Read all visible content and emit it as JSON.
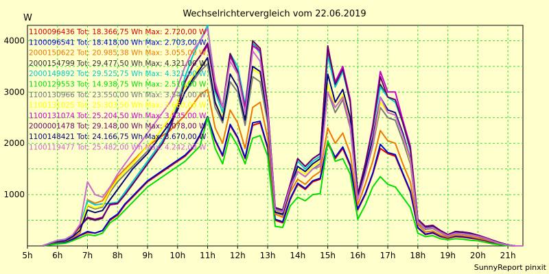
{
  "chart_data": {
    "type": "line",
    "title": "Wechselrichtervergleich vom 22.06.2019",
    "ylabel": "W",
    "footer": "SunnyReport pinxit",
    "grid": true,
    "ylim": [
      0,
      4300
    ],
    "xlim": [
      5,
      21.5
    ],
    "yticks": [
      1000,
      2000,
      3000,
      4000
    ],
    "xticks": [
      "5h",
      "6h",
      "7h",
      "8h",
      "9h",
      "10h",
      "11h",
      "12h",
      "13h",
      "14h",
      "15h",
      "16h",
      "17h",
      "18h",
      "19h",
      "20h",
      "21h"
    ],
    "x": [
      5.5,
      5.75,
      6,
      6.25,
      6.5,
      6.75,
      7,
      7.25,
      7.5,
      7.75,
      8,
      8.25,
      8.5,
      8.75,
      9,
      9.25,
      9.5,
      9.75,
      10,
      10.25,
      10.5,
      10.75,
      11,
      11.25,
      11.5,
      11.75,
      12,
      12.25,
      12.5,
      12.75,
      13,
      13.25,
      13.5,
      13.75,
      14,
      14.25,
      14.5,
      14.75,
      15,
      15.25,
      15.5,
      15.75,
      16,
      16.25,
      16.5,
      16.75,
      17,
      17.25,
      17.5,
      17.75,
      18,
      18.25,
      18.5,
      18.75,
      19,
      19.25,
      19.5,
      19.75,
      20,
      20.25,
      20.5,
      20.75,
      21,
      21.25,
      21.5
    ],
    "series": [
      {
        "name": "1100096436 Tot: 18.366,75 Wh Max: 2.720,00 W",
        "color": "#dd0000",
        "values": [
          0,
          30,
          60,
          70,
          120,
          200,
          260,
          250,
          300,
          500,
          600,
          800,
          950,
          1100,
          1250,
          1350,
          1450,
          1550,
          1650,
          1750,
          1900,
          2150,
          2520,
          2050,
          1750,
          2350,
          2100,
          1700,
          2350,
          2400,
          1900,
          500,
          450,
          900,
          1200,
          1100,
          1250,
          1300,
          2000,
          1700,
          1900,
          1550,
          700,
          1000,
          1400,
          1900,
          1800,
          1750,
          1400,
          1050,
          350,
          220,
          250,
          180,
          150,
          180,
          170,
          150,
          130,
          100,
          60,
          30,
          10,
          0,
          0
        ]
      },
      {
        "name": "1100096541 Tot: 18.418,00 Wh Max: 2.703,00 W",
        "color": "#0000cc",
        "values": [
          0,
          30,
          60,
          70,
          130,
          210,
          280,
          250,
          300,
          520,
          620,
          820,
          970,
          1120,
          1270,
          1370,
          1470,
          1570,
          1670,
          1770,
          1920,
          2170,
          2520,
          2070,
          1770,
          2370,
          2120,
          1720,
          2400,
          2430,
          1920,
          520,
          470,
          920,
          1220,
          1120,
          1270,
          1320,
          2030,
          1730,
          1930,
          1580,
          720,
          1020,
          1420,
          1980,
          1820,
          1780,
          1420,
          1070,
          360,
          230,
          260,
          190,
          160,
          190,
          180,
          160,
          140,
          110,
          70,
          35,
          12,
          0,
          0
        ]
      },
      {
        "name": "2000150622 Tot: 20.985,38 Wh Max: 3.055,00 W",
        "color": "#ee7700",
        "values": [
          0,
          40,
          80,
          90,
          160,
          250,
          900,
          830,
          880,
          1100,
          1350,
          1500,
          1650,
          1800,
          1950,
          2050,
          2150,
          2250,
          2400,
          2550,
          2750,
          2950,
          3050,
          2300,
          2000,
          2650,
          2400,
          1900,
          2700,
          2800,
          2100,
          620,
          560,
          1050,
          1300,
          1200,
          1350,
          1450,
          2300,
          2000,
          2200,
          1800,
          800,
          1200,
          1650,
          2250,
          2050,
          2000,
          1600,
          1250,
          420,
          270,
          290,
          210,
          170,
          210,
          200,
          180,
          150,
          120,
          80,
          40,
          15,
          0,
          0
        ]
      },
      {
        "name": "2000154799 Tot: 29.477,50 Wh Max: 4.321,00 W",
        "color": "#333333",
        "values": [
          0,
          50,
          100,
          120,
          200,
          380,
          540,
          500,
          540,
          820,
          840,
          1000,
          1200,
          1400,
          1600,
          1800,
          2000,
          2300,
          2700,
          3200,
          3500,
          3700,
          3950,
          3100,
          2700,
          3700,
          3400,
          2700,
          3950,
          3800,
          2700,
          750,
          700,
          1200,
          1700,
          1550,
          1700,
          1800,
          3800,
          3150,
          3400,
          2800,
          1000,
          1600,
          2300,
          3150,
          2900,
          2850,
          2400,
          1900,
          520,
          380,
          400,
          300,
          220,
          280,
          270,
          250,
          210,
          160,
          110,
          60,
          20,
          0,
          0
        ]
      },
      {
        "name": "2000149892 Tot: 29.525,75 Wh Max: 4.321,00 W",
        "color": "#00cccc",
        "values": [
          0,
          60,
          110,
          130,
          210,
          400,
          880,
          800,
          820,
          830,
          850,
          1050,
          1250,
          1450,
          1650,
          1850,
          2050,
          2350,
          2750,
          3300,
          3700,
          4000,
          4300,
          3000,
          2600,
          3750,
          3500,
          2750,
          3950,
          3750,
          2700,
          720,
          680,
          1180,
          1650,
          1500,
          1650,
          1750,
          3700,
          3100,
          3400,
          2800,
          1000,
          1550,
          2300,
          3100,
          2900,
          2800,
          2400,
          1850,
          500,
          370,
          390,
          290,
          210,
          270,
          260,
          240,
          200,
          150,
          100,
          50,
          18,
          0,
          0
        ]
      },
      {
        "name": "1100129553 Tot: 14.938,75 Wh Max: 2.510,00 W",
        "color": "#00dd00",
        "values": [
          0,
          20,
          40,
          50,
          100,
          160,
          220,
          200,
          250,
          450,
          550,
          700,
          850,
          1000,
          1150,
          1250,
          1350,
          1450,
          1550,
          1650,
          1800,
          1950,
          2500,
          1900,
          1600,
          2200,
          1950,
          1600,
          2100,
          2150,
          1750,
          380,
          360,
          780,
          950,
          880,
          1000,
          1020,
          2050,
          1650,
          1700,
          1400,
          520,
          800,
          1150,
          1350,
          1200,
          1150,
          950,
          750,
          250,
          180,
          200,
          140,
          120,
          140,
          130,
          110,
          100,
          70,
          40,
          20,
          5,
          0,
          0
        ]
      },
      {
        "name": "1100130966 Tot: 23.550,00 Wh Max: 3.545,00 W",
        "color": "#777777",
        "values": [
          0,
          45,
          90,
          100,
          180,
          320,
          780,
          720,
          760,
          1050,
          1250,
          1400,
          1550,
          1700,
          1850,
          2000,
          2200,
          2400,
          2700,
          3000,
          3200,
          3400,
          3550,
          2700,
          2400,
          3200,
          3000,
          2350,
          3300,
          3200,
          2400,
          650,
          600,
          1100,
          1450,
          1350,
          1500,
          1600,
          3000,
          2600,
          2850,
          2300,
          900,
          1400,
          1950,
          2700,
          2500,
          2450,
          2050,
          1600,
          450,
          320,
          340,
          250,
          190,
          240,
          230,
          210,
          180,
          140,
          90,
          45,
          16,
          0,
          0
        ]
      },
      {
        "name": "1100131025 Tot: 25.303,50 Wh Max: 3.660,00 W",
        "color": "#ffff00",
        "values": [
          0,
          48,
          95,
          110,
          190,
          350,
          800,
          740,
          780,
          1080,
          1300,
          1450,
          1600,
          1780,
          1950,
          2100,
          2300,
          2500,
          2800,
          3100,
          3300,
          3500,
          3650,
          2800,
          2500,
          3350,
          3100,
          2450,
          3450,
          3350,
          2500,
          680,
          640,
          1150,
          1500,
          1400,
          1550,
          1650,
          3150,
          2700,
          2950,
          2400,
          930,
          1450,
          2000,
          2800,
          2600,
          2550,
          2150,
          1650,
          470,
          340,
          360,
          260,
          200,
          250,
          240,
          220,
          190,
          150,
          95,
          48,
          17,
          0,
          0
        ]
      },
      {
        "name": "1100131074 Tot: 25.204,50 Wh Max: 3.835,00 W",
        "color": "#cc00cc",
        "values": [
          0,
          50,
          100,
          120,
          200,
          380,
          560,
          520,
          560,
          800,
          820,
          1000,
          1200,
          1400,
          1600,
          1800,
          2000,
          2300,
          2700,
          3200,
          3500,
          3700,
          3900,
          3100,
          2700,
          3700,
          3400,
          2700,
          3900,
          3800,
          2700,
          740,
          700,
          1200,
          1700,
          1550,
          1700,
          1800,
          3850,
          3200,
          3500,
          2850,
          1000,
          1600,
          2350,
          3400,
          3000,
          3000,
          2450,
          1950,
          520,
          380,
          400,
          300,
          220,
          280,
          270,
          250,
          210,
          160,
          110,
          60,
          20,
          0,
          0
        ]
      },
      {
        "name": "2000001478 Tot: 29.148,00 Wh Max: 4.078,00 W",
        "color": "#660066",
        "values": [
          0,
          50,
          100,
          120,
          200,
          380,
          550,
          510,
          550,
          810,
          830,
          1000,
          1200,
          1400,
          1600,
          1800,
          2000,
          2300,
          2700,
          3200,
          3500,
          3700,
          3950,
          3050,
          2700,
          3750,
          3400,
          2650,
          4000,
          3850,
          2700,
          740,
          700,
          1200,
          1700,
          1550,
          1700,
          1800,
          3900,
          3150,
          3450,
          2800,
          1000,
          1600,
          2300,
          3300,
          2900,
          2850,
          2400,
          1900,
          520,
          380,
          400,
          300,
          220,
          280,
          270,
          250,
          210,
          160,
          110,
          60,
          20,
          0,
          0
        ]
      },
      {
        "name": "1100148421 Tot: 24.166,75 Wh Max: 3.670,00 W",
        "color": "#000077",
        "values": [
          0,
          45,
          90,
          100,
          180,
          300,
          700,
          650,
          690,
          900,
          1100,
          1300,
          1500,
          1650,
          1800,
          2000,
          2200,
          2400,
          2650,
          3000,
          3250,
          3450,
          3670,
          2800,
          2450,
          3350,
          3100,
          2450,
          3500,
          3400,
          2500,
          660,
          620,
          1120,
          1550,
          1450,
          1600,
          1700,
          3350,
          2800,
          3050,
          2500,
          940,
          1480,
          2100,
          2900,
          2650,
          2600,
          2200,
          1700,
          480,
          350,
          370,
          270,
          200,
          260,
          250,
          230,
          190,
          150,
          95,
          48,
          17,
          0,
          0
        ]
      },
      {
        "name": "1100119477 Tot: 25.482,00 Wh Max: 4.242,00 W",
        "color": "#cc66cc",
        "values": [
          0,
          55,
          105,
          125,
          210,
          420,
          1250,
          1000,
          950,
          1150,
          1400,
          1600,
          1800,
          2000,
          2200,
          2400,
          2600,
          2800,
          3100,
          3500,
          3800,
          4000,
          4240,
          3200,
          2700,
          3600,
          3350,
          2600,
          3800,
          3600,
          2600,
          700,
          660,
          1150,
          1450,
          1350,
          1500,
          1550,
          3000,
          2700,
          2900,
          2350,
          900,
          1400,
          2000,
          2900,
          2600,
          2550,
          2150,
          1700,
          480,
          340,
          360,
          270,
          200,
          250,
          240,
          220,
          190,
          150,
          95,
          48,
          17,
          0,
          0
        ]
      }
    ]
  }
}
